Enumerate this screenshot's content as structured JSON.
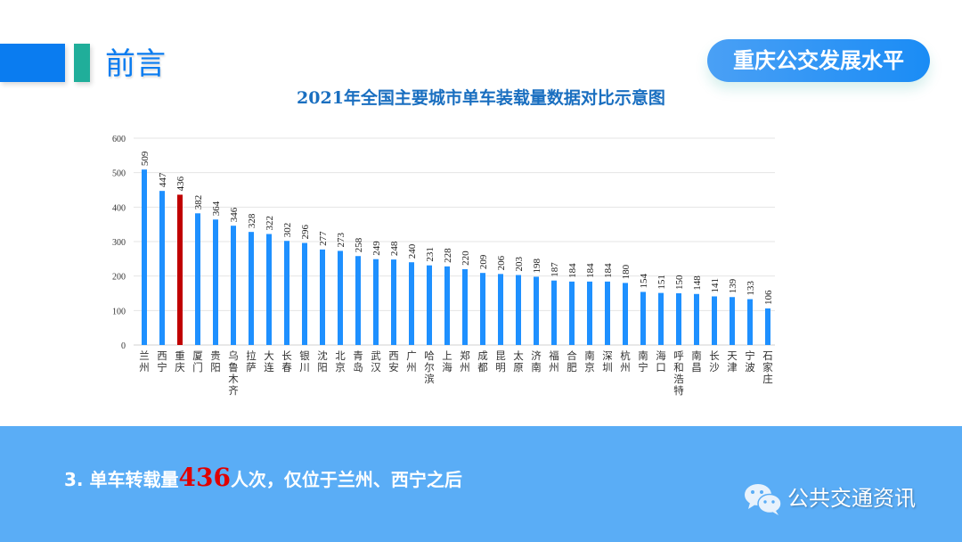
{
  "header": {
    "title": "前言",
    "badge": "重庆公交发展水平"
  },
  "chart_data": {
    "type": "bar",
    "title": "2021年全国主要城市单车装载量数据对比示意图",
    "categories": [
      "兰州",
      "西宁",
      "重庆",
      "厦门",
      "贵阳",
      "乌鲁木齐",
      "拉萨",
      "大连",
      "长春",
      "银川",
      "沈阳",
      "北京",
      "青岛",
      "武汉",
      "西安",
      "广州",
      "哈尔滨",
      "上海",
      "郑州",
      "成都",
      "昆明",
      "太原",
      "济南",
      "福州",
      "合肥",
      "南京",
      "深圳",
      "杭州",
      "南宁",
      "海口",
      "呼和浩特",
      "南昌",
      "长沙",
      "天津",
      "宁波",
      "石家庄"
    ],
    "values": [
      509,
      447,
      436,
      382,
      364,
      346,
      328,
      322,
      302,
      296,
      277,
      273,
      258,
      249,
      248,
      240,
      231,
      228,
      220,
      209,
      206,
      203,
      198,
      187,
      184,
      184,
      184,
      180,
      154,
      151,
      150,
      148,
      141,
      139,
      133,
      106
    ],
    "ylim": [
      0,
      600
    ],
    "yticks": [
      0,
      100,
      200,
      300,
      400,
      500,
      600
    ],
    "grid": true,
    "colors": {
      "default": "#1e90ff",
      "highlight": "#c00000"
    },
    "highlight": "重庆"
  },
  "footer": {
    "prefix": "3. 单车转载量",
    "number": "436",
    "suffix": "人次，仅位于兰州、西宁之后",
    "brand": "公共交通资讯",
    "brand_icon": "wechat-icon"
  }
}
